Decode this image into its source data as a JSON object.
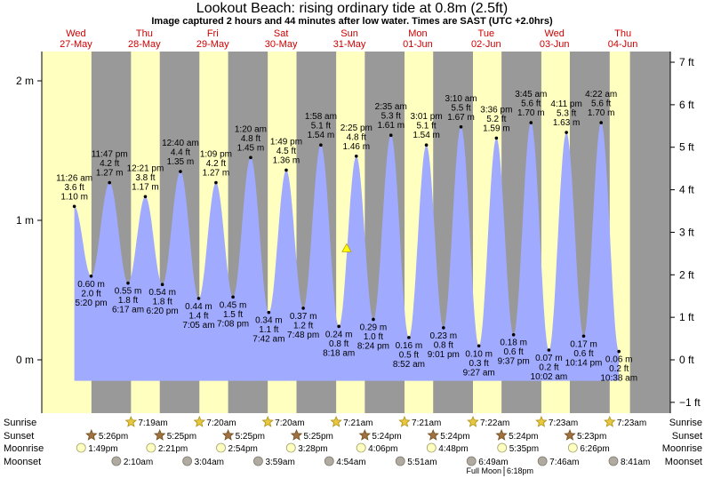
{
  "chart_data": {
    "type": "area",
    "title": "Lookout Beach: rising  ordinary tide at 0.8m (2.5ft)",
    "subtitle": "Image captured 2 hours and 44 minutes after low water. Times are SAST (UTC +2.0hrs)",
    "ylim": [
      -0.28,
      2.22
    ],
    "left_axis": {
      "unit": "m",
      "ticks": [
        {
          "v": 0,
          "label": "0 m"
        },
        {
          "v": 1,
          "label": "1 m"
        },
        {
          "v": 2,
          "label": "2 m"
        }
      ]
    },
    "right_axis": {
      "unit": "ft",
      "ticks": [
        {
          "v": -1,
          "label": "−1 ft"
        },
        {
          "v": 0,
          "label": "0 ft"
        },
        {
          "v": 1,
          "label": "1 ft"
        },
        {
          "v": 2,
          "label": "2 ft"
        },
        {
          "v": 3,
          "label": "3 ft"
        },
        {
          "v": 4,
          "label": "4 ft"
        },
        {
          "v": 5,
          "label": "5 ft"
        },
        {
          "v": 6,
          "label": "6 ft"
        },
        {
          "v": 7,
          "label": "7 ft"
        }
      ]
    },
    "days": [
      {
        "dow": "Wed",
        "date": "27-May"
      },
      {
        "dow": "Thu",
        "date": "28-May"
      },
      {
        "dow": "Fri",
        "date": "29-May"
      },
      {
        "dow": "Sat",
        "date": "30-May"
      },
      {
        "dow": "Sun",
        "date": "31-May"
      },
      {
        "dow": "Mon",
        "date": "01-Jun"
      },
      {
        "dow": "Tue",
        "date": "02-Jun"
      },
      {
        "dow": "Wed",
        "date": "03-Jun"
      },
      {
        "dow": "Thu",
        "date": "04-Jun"
      }
    ],
    "tides": [
      {
        "t": 11.43,
        "m": 1.1,
        "time": "11:26 am",
        "ft": "3.6 ft",
        "m_label": "1.10 m",
        "type": "high"
      },
      {
        "t": 17.33,
        "m": 0.6,
        "time": "5:20 pm",
        "ft": "2.0 ft",
        "m_label": "0.60 m",
        "type": "low"
      },
      {
        "t": 23.78,
        "m": 1.27,
        "time": "11:47 pm",
        "ft": "4.2 ft",
        "m_label": "1.27 m",
        "type": "high"
      },
      {
        "t": 30.28,
        "m": 0.55,
        "time": "6:17 am",
        "ft": "1.8 ft",
        "m_label": "0.55 m",
        "type": "low"
      },
      {
        "t": 36.35,
        "m": 1.17,
        "time": "12:21 pm",
        "ft": "3.8 ft",
        "m_label": "1.17 m",
        "type": "high"
      },
      {
        "t": 42.33,
        "m": 0.54,
        "time": "6:20 pm",
        "ft": "1.8 ft",
        "m_label": "0.54 m",
        "type": "low"
      },
      {
        "t": 48.67,
        "m": 1.35,
        "time": "12:40 am",
        "ft": "4.4 ft",
        "m_label": "1.35 m",
        "type": "high"
      },
      {
        "t": 55.08,
        "m": 0.44,
        "time": "7:05 am",
        "ft": "1.4 ft",
        "m_label": "0.44 m",
        "type": "low"
      },
      {
        "t": 61.15,
        "m": 1.27,
        "time": "1:09 pm",
        "ft": "4.2 ft",
        "m_label": "1.27 m",
        "type": "high"
      },
      {
        "t": 67.13,
        "m": 0.45,
        "time": "7:08 pm",
        "ft": "1.5 ft",
        "m_label": "0.45 m",
        "type": "low"
      },
      {
        "t": 73.33,
        "m": 1.45,
        "time": "1:20 am",
        "ft": "4.8 ft",
        "m_label": "1.45 m",
        "type": "high"
      },
      {
        "t": 79.7,
        "m": 0.34,
        "time": "7:42 am",
        "ft": "1.1 ft",
        "m_label": "0.34 m",
        "type": "low"
      },
      {
        "t": 85.82,
        "m": 1.36,
        "time": "1:49 pm",
        "ft": "4.5 ft",
        "m_label": "1.36 m",
        "type": "high"
      },
      {
        "t": 91.8,
        "m": 0.37,
        "time": "7:48 pm",
        "ft": "1.2 ft",
        "m_label": "0.37 m",
        "type": "low"
      },
      {
        "t": 97.97,
        "m": 1.54,
        "time": "1:58 am",
        "ft": "5.1 ft",
        "m_label": "1.54 m",
        "type": "high"
      },
      {
        "t": 104.3,
        "m": 0.24,
        "time": "8:18 am",
        "ft": "0.8 ft",
        "m_label": "0.24 m",
        "type": "low"
      },
      {
        "t": 110.42,
        "m": 1.46,
        "time": "2:25 pm",
        "ft": "4.8 ft",
        "m_label": "1.46 m",
        "type": "high"
      },
      {
        "t": 116.4,
        "m": 0.29,
        "time": "8:24 pm",
        "ft": "1.0 ft",
        "m_label": "0.29 m",
        "type": "low"
      },
      {
        "t": 122.58,
        "m": 1.61,
        "time": "2:35 am",
        "ft": "5.3 ft",
        "m_label": "1.61 m",
        "type": "high"
      },
      {
        "t": 128.87,
        "m": 0.16,
        "time": "8:52 am",
        "ft": "0.5 ft",
        "m_label": "0.16 m",
        "type": "low"
      },
      {
        "t": 135.02,
        "m": 1.54,
        "time": "3:01 pm",
        "ft": "5.1 ft",
        "m_label": "1.54 m",
        "type": "high"
      },
      {
        "t": 141.02,
        "m": 0.23,
        "time": "9:01 pm",
        "ft": "0.8 ft",
        "m_label": "0.23 m",
        "type": "low"
      },
      {
        "t": 147.17,
        "m": 1.67,
        "time": "3:10 am",
        "ft": "5.5 ft",
        "m_label": "1.67 m",
        "type": "high"
      },
      {
        "t": 153.45,
        "m": 0.1,
        "time": "9:27 am",
        "ft": "0.3 ft",
        "m_label": "0.10 m",
        "type": "low"
      },
      {
        "t": 159.6,
        "m": 1.59,
        "time": "3:36 pm",
        "ft": "5.2 ft",
        "m_label": "1.59 m",
        "type": "high"
      },
      {
        "t": 165.62,
        "m": 0.18,
        "time": "9:37 pm",
        "ft": "0.6 ft",
        "m_label": "0.18 m",
        "type": "low"
      },
      {
        "t": 171.75,
        "m": 1.7,
        "time": "3:45 am",
        "ft": "5.6 ft",
        "m_label": "1.70 m",
        "type": "high"
      },
      {
        "t": 178.03,
        "m": 0.07,
        "time": "10:02 am",
        "ft": "0.2 ft",
        "m_label": "0.07 m",
        "type": "low"
      },
      {
        "t": 184.18,
        "m": 1.63,
        "time": "4:11 pm",
        "ft": "5.3 ft",
        "m_label": "1.63 m",
        "type": "high"
      },
      {
        "t": 190.23,
        "m": 0.17,
        "time": "10:14 pm",
        "ft": "0.6 ft",
        "m_label": "0.17 m",
        "type": "low"
      },
      {
        "t": 196.37,
        "m": 1.7,
        "time": "4:22 am",
        "ft": "5.6 ft",
        "m_label": "1.70 m",
        "type": "high"
      },
      {
        "t": 202.63,
        "m": 0.06,
        "time": "10:38 am",
        "ft": "0.2 ft",
        "m_label": "0.06 m",
        "type": "low"
      }
    ],
    "current": {
      "t": 107.03,
      "m": 0.8
    },
    "sun": [
      {
        "sunrise": 0,
        "sunset": 17.43
      },
      {
        "sunrise": 31.32,
        "sunset": 41.42
      },
      {
        "sunrise": 55.33,
        "sunset": 65.42
      },
      {
        "sunrise": 79.33,
        "sunset": 89.42
      },
      {
        "sunrise": 103.35,
        "sunset": 113.4
      },
      {
        "sunrise": 127.35,
        "sunset": 137.4
      },
      {
        "sunrise": 151.37,
        "sunset": 161.4
      },
      {
        "sunrise": 175.38,
        "sunset": 185.38
      },
      {
        "sunrise": 199.38,
        "sunset": 206.5
      }
    ]
  },
  "astro": {
    "row_labels": {
      "sunrise": "Sunrise",
      "sunset": "Sunset",
      "moonrise": "Moonrise",
      "moonset": "Moonset"
    },
    "sunrise": [
      {
        "t": 31.32,
        "label": "7:19am"
      },
      {
        "t": 55.33,
        "label": "7:20am"
      },
      {
        "t": 79.33,
        "label": "7:20am"
      },
      {
        "t": 103.35,
        "label": "7:21am"
      },
      {
        "t": 127.35,
        "label": "7:21am"
      },
      {
        "t": 151.37,
        "label": "7:22am"
      },
      {
        "t": 175.38,
        "label": "7:23am"
      },
      {
        "t": 199.38,
        "label": "7:23am"
      }
    ],
    "sunset": [
      {
        "t": 17.43,
        "label": "5:26pm"
      },
      {
        "t": 41.42,
        "label": "5:25pm"
      },
      {
        "t": 65.42,
        "label": "5:25pm"
      },
      {
        "t": 89.42,
        "label": "5:25pm"
      },
      {
        "t": 113.4,
        "label": "5:24pm"
      },
      {
        "t": 137.4,
        "label": "5:24pm"
      },
      {
        "t": 161.4,
        "label": "5:24pm"
      },
      {
        "t": 185.38,
        "label": "5:23pm"
      }
    ],
    "moonrise": [
      {
        "t": 13.82,
        "label": "1:49pm"
      },
      {
        "t": 38.35,
        "label": "2:21pm"
      },
      {
        "t": 62.9,
        "label": "2:54pm"
      },
      {
        "t": 87.47,
        "label": "3:28pm"
      },
      {
        "t": 112.1,
        "label": "4:06pm"
      },
      {
        "t": 136.8,
        "label": "4:48pm"
      },
      {
        "t": 161.58,
        "label": "5:35pm"
      },
      {
        "t": 186.43,
        "label": "6:26pm"
      }
    ],
    "moonset": [
      {
        "t": 26.17,
        "label": "2:10am"
      },
      {
        "t": 51.07,
        "label": "3:04am"
      },
      {
        "t": 75.98,
        "label": "3:59am"
      },
      {
        "t": 100.9,
        "label": "4:54am"
      },
      {
        "t": 125.85,
        "label": "5:51am"
      },
      {
        "t": 150.82,
        "label": "6:49am"
      },
      {
        "t": 175.77,
        "label": "7:46am"
      },
      {
        "t": 200.68,
        "label": "8:41am"
      }
    ],
    "full_moon": {
      "t": 162.3,
      "label": "Full Moon",
      "time": "6:18pm"
    }
  },
  "colors": {
    "day": "#ffffc0",
    "night": "#999999",
    "water": "#a0aaff",
    "sun_icon": "#e8c840",
    "sunset_icon": "#a07040",
    "moonrise_icon": "#ffffc0",
    "moonset_icon": "#b0aaa0"
  }
}
